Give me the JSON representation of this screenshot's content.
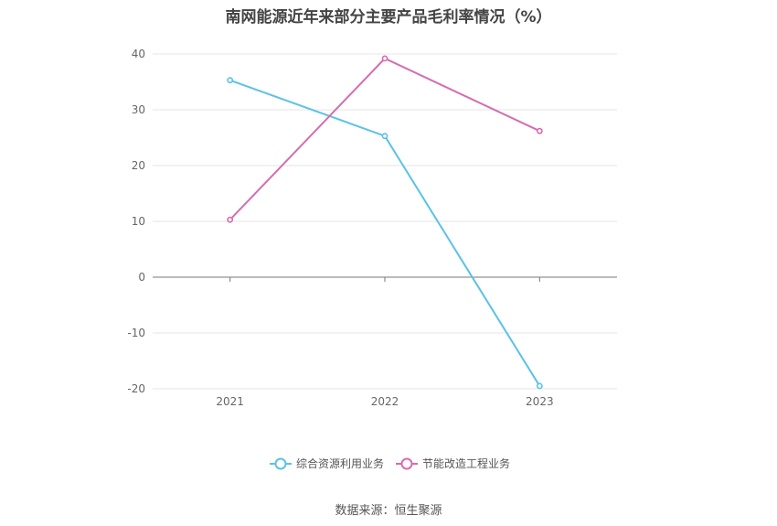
{
  "chart_data": {
    "type": "line",
    "title": "南网能源近年来部分主要产品毛利率情况（%）",
    "categories": [
      "2021",
      "2022",
      "2023"
    ],
    "series": [
      {
        "name": "综合资源利用业务",
        "values": [
          35.3,
          25.3,
          -19.5
        ],
        "color": "#5bc2e7"
      },
      {
        "name": "节能改造工程业务",
        "values": [
          10.3,
          39.2,
          26.2
        ],
        "color": "#d46db0"
      }
    ],
    "ylim": [
      -20,
      40
    ],
    "yticks": [
      -20,
      -10,
      0,
      10,
      20,
      30,
      40
    ],
    "grid": true,
    "legend": "bottom"
  },
  "source": "数据来源：恒生聚源"
}
